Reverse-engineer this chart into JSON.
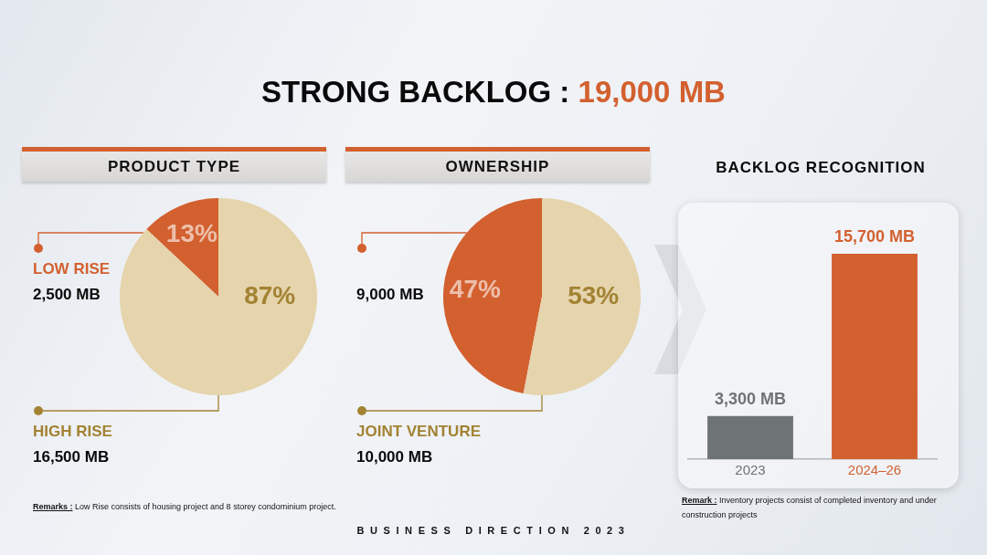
{
  "chart_data": [
    {
      "type": "other",
      "title": "STRONG BACKLOG : 19,000 MB",
      "annotations": [
        "Remarks : Low Rise consists of housing project and 8 storey condominium project.",
        "BUSINESS DIRECTION 2023"
      ]
    },
    {
      "type": "pie",
      "title": "PRODUCT TYPE",
      "categories": [
        "LOW RISE",
        "HIGH RISE"
      ],
      "values": [
        13,
        87
      ],
      "colors": [
        "#d3602f",
        "#e5d4ac"
      ],
      "value_labels": [
        "13%",
        "87%"
      ],
      "annotations": [
        "2,500 MB",
        "16,500 MB"
      ]
    },
    {
      "type": "pie",
      "title": "OWNERSHIP",
      "categories": [
        null,
        "JOINT VENTURE"
      ],
      "values": [
        47,
        53
      ],
      "colors": [
        "#d3602f",
        "#e5d4ac"
      ],
      "value_labels": [
        "47%",
        "53%"
      ],
      "annotations": [
        "9,000 MB",
        "10,000 MB"
      ]
    },
    {
      "type": "bar",
      "title": "BACKLOG RECOGNITION",
      "categories": [
        "2023",
        "2024–26"
      ],
      "values": [
        3300,
        15700
      ],
      "colors": [
        "#6e7376",
        "#d3602f"
      ],
      "value_labels": [
        "3,300 MB",
        "15,700 MB"
      ],
      "annotations": [
        "Remark : Inventory projects consist of completed inventory and under construction projects"
      ]
    }
  ]
}
